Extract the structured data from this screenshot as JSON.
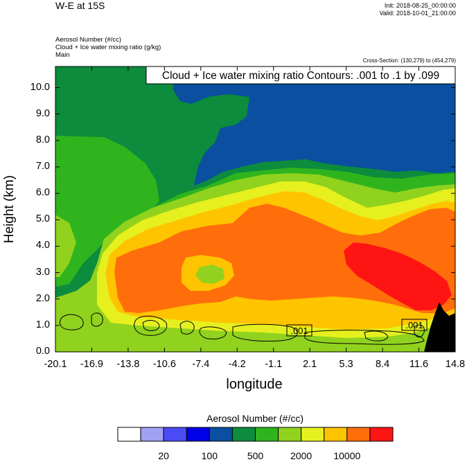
{
  "header": {
    "title": "W-E at 15S",
    "init": "Init: 2018-08-25_00:00:00",
    "valid": "Valid: 2018-10-01_21:00:00",
    "field1": "Aerosol Number   (#/cc)",
    "field2": "Cloud + Ice water mixing ratio   (g/kg)",
    "field3": "Main",
    "cross_section": "Cross-Section: (130,279) to (454,279)"
  },
  "chart_data": {
    "type": "contour",
    "title": "W-E at 15S",
    "xlabel": "longitude",
    "ylabel": "Height (km)",
    "xlim": [
      -20.1,
      14.8
    ],
    "ylim": [
      0.0,
      10.8
    ],
    "x_ticks": [
      "-20.1",
      "-16.9",
      "-13.8",
      "-10.6",
      "-7.4",
      "-4.2",
      "-1.1",
      "2.1",
      "5.3",
      "8.4",
      "11.6",
      "14.8"
    ],
    "y_ticks": [
      "0.0",
      "1.0",
      "2.0",
      "3.0",
      "4.0",
      "5.0",
      "6.0",
      "7.0",
      "8.0",
      "9.0",
      "10.0"
    ],
    "contour_title": "Cloud + Ice water mixing ratio Contours: .001 to .1 by .099",
    "contour_labels": [
      ".001",
      ".001"
    ],
    "colorbar": {
      "title": "Aerosol Number  (#/cc)",
      "colors": [
        "#ffffff",
        "#a0a0f5",
        "#4b4bf5",
        "#0000e6",
        "#0a4fa0",
        "#0c8c3c",
        "#30b41e",
        "#90d21e",
        "#e6f01e",
        "#ffc400",
        "#ff6e0a",
        "#ff1414"
      ],
      "labels": [
        "20",
        "100",
        "500",
        "2000",
        "10000"
      ]
    }
  }
}
